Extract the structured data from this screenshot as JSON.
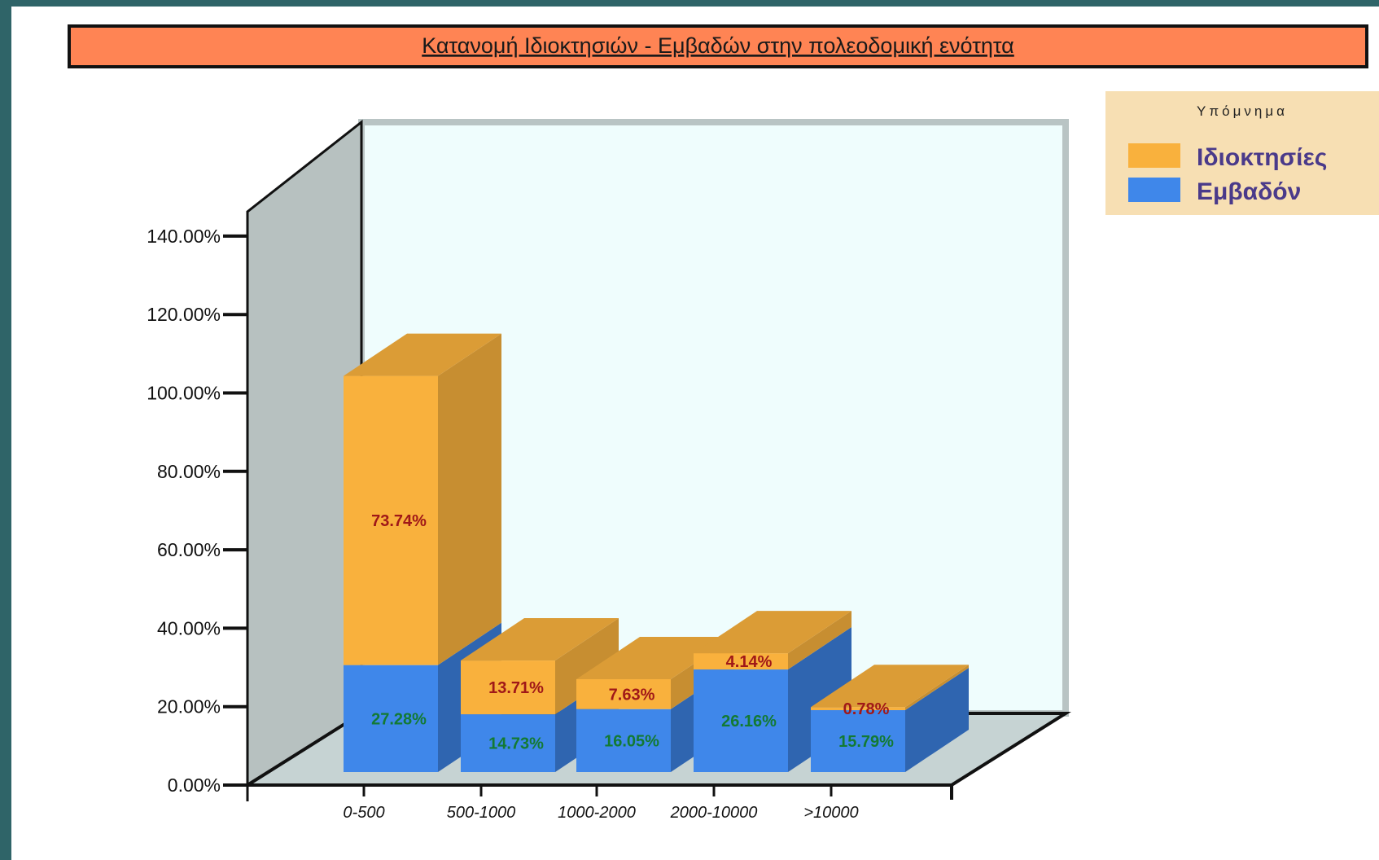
{
  "chart_data": {
    "type": "bar",
    "stacked": true,
    "title": "Κατανομή Ιδιοκτησιών - Εμβαδών στην πολεοδομική ενότητα",
    "categories": [
      "0-500",
      "500-1000",
      "1000-2000",
      "2000-10000",
      ">10000"
    ],
    "series": [
      {
        "name": "Εμβαδόν",
        "values": [
          27.28,
          14.73,
          16.05,
          26.16,
          15.79
        ],
        "labels": [
          "27.28%",
          "14.73%",
          "16.05%",
          "26.16%",
          "15.79%"
        ],
        "color": "#3f87ea",
        "label_color": "#137a33"
      },
      {
        "name": "Ιδιοκτησίες",
        "values": [
          73.74,
          13.71,
          7.63,
          4.14,
          0.78
        ],
        "labels": [
          "73.74%",
          "13.71%",
          "7.63%",
          "4.14%",
          "0.78%"
        ],
        "color": "#f9b13d",
        "label_color": "#a01818"
      }
    ],
    "ylim": [
      0,
      140
    ],
    "yticks": [
      0,
      20,
      40,
      60,
      80,
      100,
      120,
      140
    ],
    "ytick_labels": [
      "0.00%",
      "20.00%",
      "40.00%",
      "60.00%",
      "80.00%",
      "100.00%",
      "120.00%",
      "140.00%"
    ],
    "legend": {
      "title": "Υπόμνημα",
      "placement": "top-right",
      "entries": [
        "Ιδιοκτησίες",
        "Εμβαδόν"
      ]
    },
    "style": "3d",
    "colors": {
      "title_bar": "#ff8454",
      "back_wall": "#effdfd",
      "side_wall": "#b7c1c0",
      "floor": "#c6d3d3",
      "legend_bg": "#f7dfb3"
    }
  }
}
